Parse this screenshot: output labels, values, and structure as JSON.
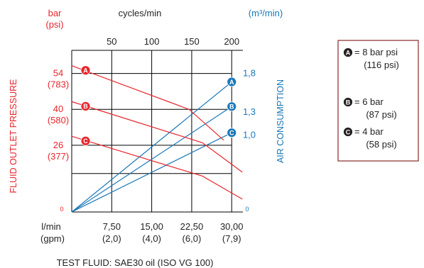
{
  "chart_data": {
    "type": "line",
    "colors": {
      "pressure": "#e8262d",
      "air": "#1a78b8",
      "grid": "#000000",
      "legend_border": "#8a2a2a"
    },
    "left_unit": {
      "line1": "bar",
      "line2": "(psi)"
    },
    "top_unit": "cycles/min",
    "right_unit": "(m³/min)",
    "left_axis_title": "FLUID OUTLET PRESSURE",
    "right_axis_title": "AIR CONSUMPTION",
    "bottom_unit": {
      "line1": "l/min",
      "line2": "(gpm)"
    },
    "footer": "TEST FLUID:  SAE30 oil (ISO VG 100)",
    "x_range": [
      0,
      32.1
    ],
    "x_gridlines": [
      7.5,
      15,
      22.5,
      30
    ],
    "x_ticks": [
      {
        "v": 7.5,
        "line1": "7,50",
        "line2": "(2,0)"
      },
      {
        "v": 15,
        "line1": "15,00",
        "line2": "(4,0)"
      },
      {
        "v": 22.5,
        "line1": "22,50",
        "line2": "(6,0)"
      },
      {
        "v": 30,
        "line1": "30,00",
        "line2": "(7,9)"
      }
    ],
    "top_ticks": [
      {
        "x": 7.5,
        "label": "50"
      },
      {
        "x": 15,
        "label": "100"
      },
      {
        "x": 22.5,
        "label": "150"
      },
      {
        "x": 30,
        "label": "200"
      }
    ],
    "pressure_range": [
      0,
      63
    ],
    "pressure_gridlines": [
      15,
      26,
      40,
      54
    ],
    "pressure_ticks": [
      {
        "v": 54,
        "line1": "54",
        "line2": "(783)"
      },
      {
        "v": 40,
        "line1": "40",
        "line2": "(580)"
      },
      {
        "v": 26,
        "line1": "26",
        "line2": "(377)"
      },
      {
        "v": 0,
        "line1": "0",
        "line2": ""
      }
    ],
    "air_range": [
      0,
      2.1
    ],
    "air_ticks": [
      {
        "v": 1.8,
        "label": "1,8"
      },
      {
        "v": 1.3,
        "label": "1,3"
      },
      {
        "v": 1.0,
        "label": "1,0"
      },
      {
        "v": 0,
        "label": "0"
      }
    ],
    "pressure_series": [
      {
        "name": "A",
        "points": [
          [
            0,
            57
          ],
          [
            22,
            40
          ],
          [
            28.5,
            28
          ]
        ]
      },
      {
        "name": "B",
        "points": [
          [
            0,
            43
          ],
          [
            24.5,
            27
          ],
          [
            32,
            15.5
          ]
        ]
      },
      {
        "name": "C",
        "points": [
          [
            0,
            29.5
          ],
          [
            24.5,
            14
          ],
          [
            32,
            5
          ]
        ]
      }
    ],
    "air_series": [
      {
        "name": "A",
        "points": [
          [
            0,
            0
          ],
          [
            30,
            1.69
          ]
        ]
      },
      {
        "name": "B",
        "points": [
          [
            0,
            0
          ],
          [
            30,
            1.37
          ]
        ]
      },
      {
        "name": "C",
        "points": [
          [
            0,
            0
          ],
          [
            30,
            1.03
          ]
        ]
      }
    ],
    "legend": [
      {
        "key": "A",
        "line1": "= 8 bar psi",
        "line2": "(116 psi)"
      },
      {
        "key": "B",
        "line1": "= 6 bar",
        "line2": "(87 psi)"
      },
      {
        "key": "C",
        "line1": "= 4 bar",
        "line2": "(58 psi)"
      }
    ]
  }
}
